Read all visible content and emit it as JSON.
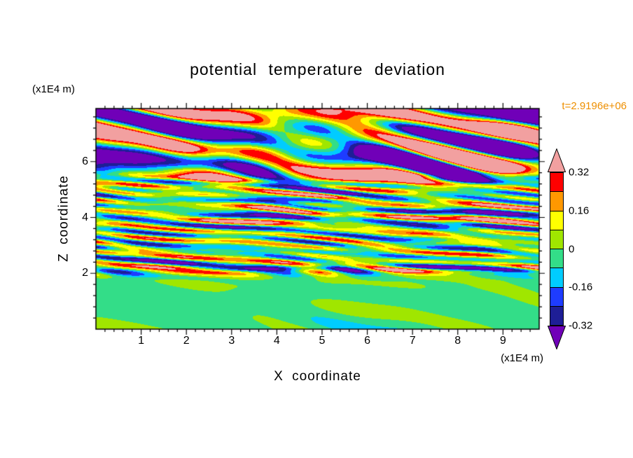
{
  "background": "#ffffff",
  "frame_color": "#000000",
  "chart_data": {
    "type": "heatmap",
    "title": "potential temperature deviation",
    "time_label": "t=2.9196e+06",
    "time_label_color": "#ee8f00",
    "xlabel": "X coordinate",
    "ylabel": "Z coordinate",
    "x_unit_label": "(x1E4 m)",
    "z_unit_label": "(x1E4 m)",
    "x_range": [
      0,
      9.8
    ],
    "z_range": [
      0,
      7.9
    ],
    "x_ticks": [
      1,
      2,
      3,
      4,
      5,
      6,
      7,
      8,
      9
    ],
    "z_ticks": [
      2,
      4,
      6
    ],
    "x_minor_step": 0.2,
    "z_minor_step": 0.4,
    "grid": false,
    "legend_position": "right-colorbar",
    "colorbar": {
      "labels": [
        "0.32",
        "0.16",
        "0",
        "-0.16",
        "-0.32"
      ],
      "label_boundary_indices": [
        0,
        2,
        4,
        6,
        8
      ],
      "thresholds": [
        -0.32,
        -0.24,
        -0.16,
        -0.08,
        0,
        0.08,
        0.16,
        0.24,
        0.32
      ],
      "band_colors_low_to_high": [
        "#1e1e96",
        "#1e3cff",
        "#00ccff",
        "#33dd88",
        "#a0e600",
        "#ffff00",
        "#ff9800",
        "#ff0000"
      ],
      "under_color": "#7000b8",
      "over_color": "#f2a0a0"
    },
    "field": {
      "seed": 7,
      "description": "stratified turbulence snapshot: near-zero values (greens) below z=2, fine layered wave stripes spanning all bands for 2<z<5, large saturated pink/purple blobs above z=5"
    }
  }
}
